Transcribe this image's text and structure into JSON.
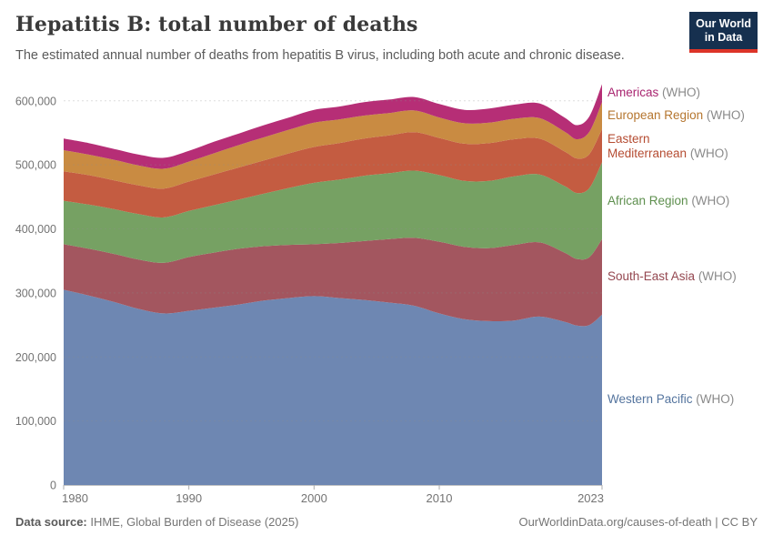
{
  "header": {
    "title": "Hepatitis B: total number of deaths",
    "subtitle": "The estimated annual number of deaths from hepatitis B virus, including both acute and chronic disease."
  },
  "logo": {
    "line1": "Our World",
    "line2": "in Data"
  },
  "chart_data": {
    "type": "area",
    "stacked": true,
    "title": "Hepatitis B: total number of deaths",
    "xlabel": "",
    "ylabel": "",
    "ylim": [
      0,
      600000
    ],
    "grid": "dashed",
    "legend_position": "right",
    "legend_suffix": " (WHO)",
    "x": [
      1980,
      1982,
      1984,
      1986,
      1988,
      1990,
      1992,
      1994,
      1996,
      1998,
      2000,
      2002,
      2004,
      2006,
      2008,
      2010,
      2012,
      2014,
      2016,
      2018,
      2020,
      2021,
      2022,
      2023
    ],
    "xticks": [
      1980,
      1990,
      2000,
      2010,
      2023
    ],
    "yticks": [
      0,
      100000,
      200000,
      300000,
      400000,
      500000,
      600000
    ],
    "ytick_labels": [
      "0",
      "100,000",
      "200,000",
      "300,000",
      "400,000",
      "500,000",
      "600,000"
    ],
    "series": [
      {
        "name": "western-pacific",
        "legend_label": "Western Pacific",
        "color": "#6e87b2",
        "text_color": "#54749e",
        "values": [
          305000,
          296000,
          286000,
          275000,
          268000,
          272000,
          277000,
          282000,
          288000,
          292000,
          295000,
          292000,
          289000,
          285000,
          280000,
          268000,
          259000,
          256000,
          257000,
          263000,
          255000,
          249000,
          250000,
          266000
        ]
      },
      {
        "name": "south-east-asia",
        "legend_label": "South-East Asia",
        "color": "#a3565f",
        "text_color": "#944750",
        "values": [
          71000,
          73000,
          75000,
          77000,
          79000,
          84000,
          86000,
          87000,
          85000,
          83000,
          81000,
          86000,
          92000,
          99000,
          106000,
          112000,
          113000,
          114000,
          118000,
          116000,
          108000,
          104000,
          106000,
          118000
        ]
      },
      {
        "name": "african-region",
        "legend_label": "African Region",
        "color": "#76a163",
        "text_color": "#5e8f4e",
        "values": [
          68000,
          69000,
          70000,
          71000,
          71000,
          72000,
          74000,
          77000,
          82000,
          89000,
          96000,
          99000,
          102000,
          103000,
          105000,
          104000,
          103000,
          105000,
          107000,
          106000,
          104000,
          103000,
          108000,
          120000
        ]
      },
      {
        "name": "eastern-mediterranean",
        "legend_label": "Eastern\nMediterranean",
        "color": "#c45c41",
        "text_color": "#b54c32",
        "values": [
          46000,
          46000,
          45000,
          45000,
          45000,
          46000,
          48000,
          50000,
          52000,
          54000,
          56000,
          57000,
          58000,
          59000,
          60000,
          58000,
          58000,
          59000,
          58000,
          56000,
          54000,
          54000,
          53000,
          52000
        ]
      },
      {
        "name": "european-region",
        "legend_label": "European Region",
        "color": "#c98b42",
        "text_color": "#b5762f",
        "values": [
          33000,
          32000,
          32000,
          31000,
          31000,
          31000,
          33000,
          35000,
          36000,
          37000,
          38000,
          37000,
          36000,
          35000,
          34000,
          32000,
          32000,
          32000,
          32000,
          32000,
          31000,
          30000,
          35000,
          42000
        ]
      },
      {
        "name": "americas",
        "legend_label": "Americas",
        "color": "#b62e76",
        "text_color": "#a92570",
        "values": [
          18000,
          18000,
          17000,
          17000,
          17000,
          17000,
          18000,
          18000,
          19000,
          19000,
          20000,
          20000,
          21000,
          21000,
          21000,
          21000,
          21000,
          22000,
          22000,
          23000,
          22000,
          22000,
          24000,
          28000
        ]
      }
    ]
  },
  "footer": {
    "source_label": "Data source:",
    "source_text": " IHME, Global Burden of Disease (2025)",
    "right_text": "OurWorldinData.org/causes-of-death | CC BY"
  }
}
